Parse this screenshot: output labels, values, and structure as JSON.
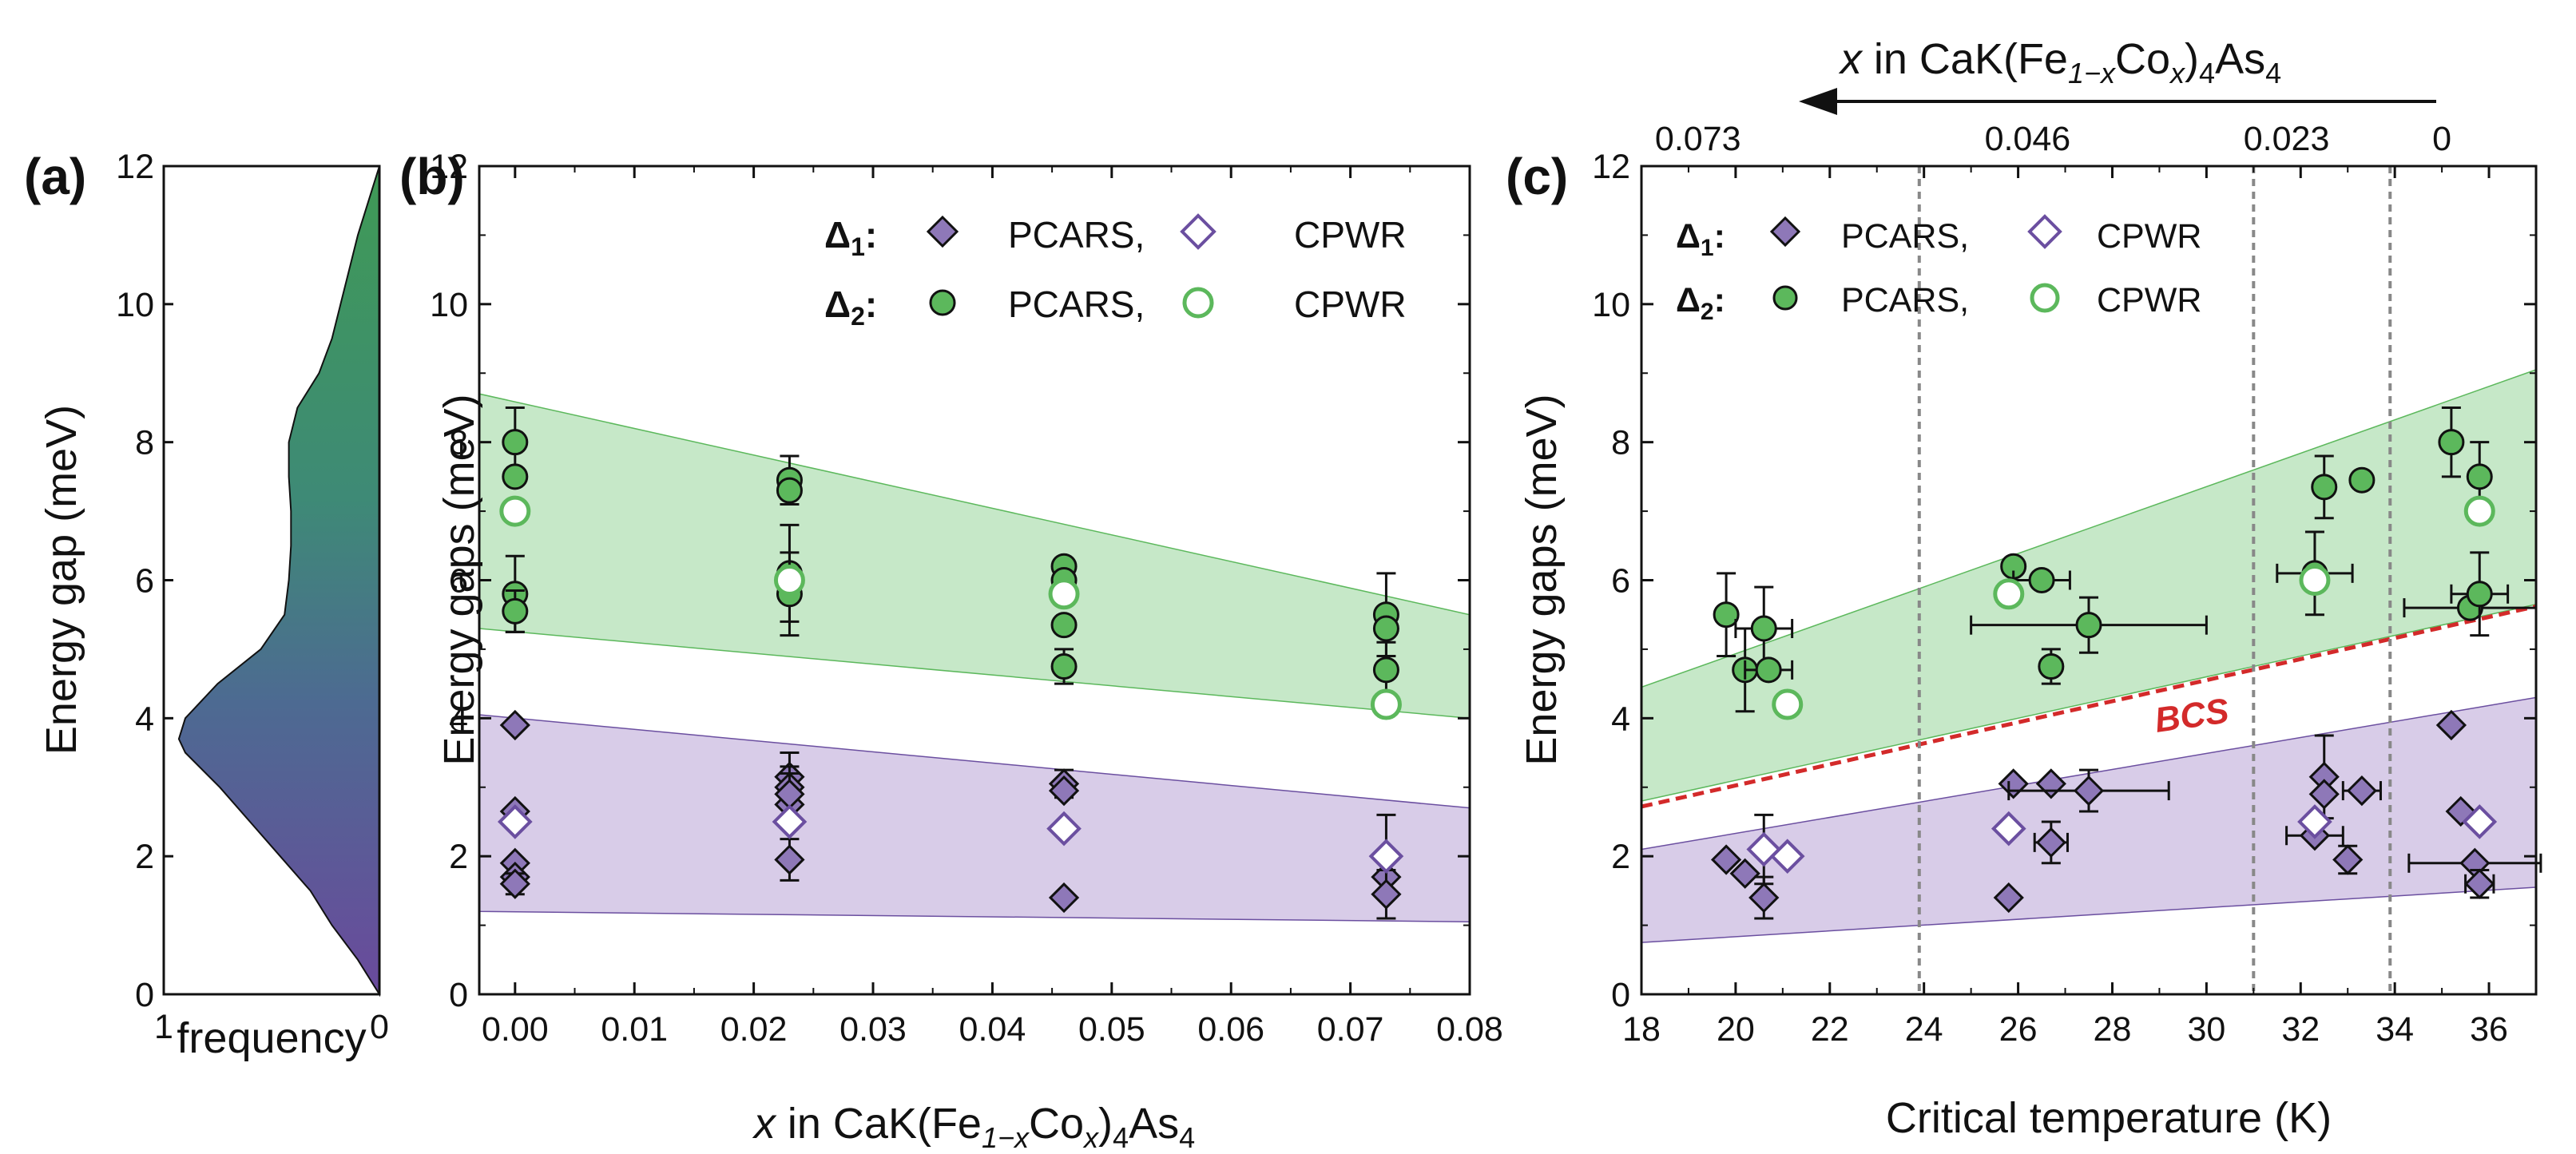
{
  "colors": {
    "green": "#5cb85c",
    "green_fill": "#c6e8c8",
    "purple": "#6b4fa0",
    "purple_fill": "#d8cce8",
    "bcs": "#d32a2a",
    "grid": "#999999"
  },
  "chart_data": [
    {
      "panel": "(a)",
      "type": "area",
      "orientation": "horizontal-density",
      "ylabel": "Energy gap (meV)",
      "xlabel": "frequency",
      "xlim": [
        1,
        0
      ],
      "ylim": [
        0,
        12
      ],
      "xticks": [
        "1",
        "0"
      ],
      "yticks": [
        "0",
        "2",
        "4",
        "6",
        "8",
        "10",
        "12"
      ],
      "density": [
        [
          0,
          0.0
        ],
        [
          0.5,
          0.1
        ],
        [
          1,
          0.22
        ],
        [
          1.5,
          0.32
        ],
        [
          2,
          0.46
        ],
        [
          2.5,
          0.6
        ],
        [
          3,
          0.74
        ],
        [
          3.5,
          0.9
        ],
        [
          3.7,
          0.93
        ],
        [
          4,
          0.9
        ],
        [
          4.5,
          0.75
        ],
        [
          5,
          0.55
        ],
        [
          5.5,
          0.44
        ],
        [
          6,
          0.42
        ],
        [
          6.5,
          0.41
        ],
        [
          7,
          0.41
        ],
        [
          7.5,
          0.42
        ],
        [
          8,
          0.42
        ],
        [
          8.5,
          0.38
        ],
        [
          9,
          0.28
        ],
        [
          9.5,
          0.22
        ],
        [
          10,
          0.18
        ],
        [
          10.5,
          0.14
        ],
        [
          11,
          0.1
        ],
        [
          11.5,
          0.05
        ],
        [
          12,
          0.0
        ]
      ]
    },
    {
      "panel": "(b)",
      "type": "scatter",
      "xlabel_pre": "x",
      "xlabel_mid": " in CaK(Fe",
      "xlabel_sub1": "1−x",
      "xlabel_co": "Co",
      "xlabel_sub2": "x",
      "xlabel_end": ")",
      "xlabel_sub3": "4",
      "xlabel_as": "As",
      "xlabel_sub4": "4",
      "ylabel": "Energy gaps (meV)",
      "xlim": [
        -0.003,
        0.08
      ],
      "ylim": [
        0,
        12
      ],
      "xticks": [
        "0.00",
        "0.01",
        "0.02",
        "0.03",
        "0.04",
        "0.05",
        "0.06",
        "0.07",
        "0.08"
      ],
      "yticks": [
        "0",
        "2",
        "4",
        "6",
        "8",
        "10",
        "12"
      ],
      "legend": {
        "d1": "Δ",
        "d1sub": "1",
        "d2": "Δ",
        "d2sub": "2",
        "colon": ":",
        "pcars": "PCARS,",
        "cpwr": "CPWR"
      },
      "band_green": {
        "x": [
          -0.003,
          0.08
        ],
        "lower": [
          5.3,
          4.0
        ],
        "upper": [
          8.7,
          5.5
        ]
      },
      "band_purple": {
        "x": [
          -0.003,
          0.08
        ],
        "lower": [
          1.2,
          1.05
        ],
        "upper": [
          4.05,
          2.7
        ]
      },
      "series": [
        {
          "name": "Δ1 PCARS",
          "x": [
            0,
            0,
            0,
            0,
            0,
            0.023,
            0.023,
            0.023,
            0.023,
            0.023,
            0.046,
            0.046,
            0.046,
            0.073,
            0.073,
            0.073
          ],
          "y": [
            3.9,
            2.65,
            1.9,
            1.7,
            1.6,
            3.15,
            3.0,
            2.75,
            1.95,
            2.9,
            3.05,
            2.95,
            1.4,
            2.0,
            1.7,
            1.45
          ],
          "err": [
            0,
            0,
            0,
            0,
            0.15,
            0.35,
            0.3,
            0,
            0.3,
            0.3,
            0.2,
            0,
            0,
            0.6,
            0,
            0.35
          ]
        },
        {
          "name": "Δ1 CPWR",
          "x": [
            0,
            0.023,
            0.046,
            0.073
          ],
          "y": [
            2.5,
            2.5,
            2.4,
            2.0
          ],
          "err": [
            0,
            0,
            0,
            0
          ]
        },
        {
          "name": "Δ2 PCARS",
          "x": [
            0,
            0,
            0,
            0,
            0.023,
            0.023,
            0.023,
            0.023,
            0.046,
            0.046,
            0.046,
            0.046,
            0.073,
            0.073,
            0.073
          ],
          "y": [
            8.0,
            7.5,
            5.8,
            5.55,
            7.45,
            7.3,
            6.1,
            5.8,
            6.2,
            6.0,
            5.35,
            4.75,
            5.5,
            5.3,
            4.7
          ],
          "err": [
            0.5,
            0,
            0.55,
            0.3,
            0.35,
            0,
            0.7,
            0.6,
            0,
            0,
            0,
            0.25,
            0.6,
            0,
            0.4
          ]
        },
        {
          "name": "Δ2 CPWR",
          "x": [
            0,
            0.023,
            0.046,
            0.073
          ],
          "y": [
            7.0,
            6.0,
            5.8,
            4.2
          ],
          "err": [
            0,
            0,
            0,
            0
          ]
        }
      ]
    },
    {
      "panel": "(c)",
      "type": "scatter",
      "xlabel": "Critical temperature (K)",
      "ylabel": "Energy gaps (meV)",
      "xlim": [
        18,
        37
      ],
      "ylim": [
        0,
        12
      ],
      "xticks": [
        "18",
        "20",
        "22",
        "24",
        "26",
        "28",
        "30",
        "32",
        "34",
        "36"
      ],
      "yticks": [
        "0",
        "2",
        "4",
        "6",
        "8",
        "10",
        "12"
      ],
      "top_axis": {
        "title_x": "x",
        "title_rest": " in CaK(Fe",
        "sub1": "1−x",
        "co": "Co",
        "sub2": "x",
        "paren": ")",
        "sub3": "4",
        "as": "As",
        "sub4": "4",
        "labels": [
          "0.073",
          "0.046",
          "0.023",
          "0"
        ],
        "label_positions_K": [
          19.2,
          26.2,
          31.7,
          35.0
        ]
      },
      "vlines_K": [
        23.9,
        31.0,
        33.9
      ],
      "bcs_label": "BCS",
      "bcs_line": {
        "x": [
          18,
          37
        ],
        "y": [
          2.72,
          5.62
        ]
      },
      "band_green": {
        "x": [
          18,
          37
        ],
        "lower": [
          2.8,
          5.65
        ],
        "upper": [
          4.45,
          9.05
        ]
      },
      "band_purple": {
        "x": [
          18,
          37
        ],
        "lower": [
          0.75,
          1.55
        ],
        "upper": [
          2.1,
          4.3
        ]
      },
      "legend": {
        "d1": "Δ",
        "d1sub": "1",
        "d2": "Δ",
        "d2sub": "2",
        "colon": ":",
        "pcars": "PCARS,",
        "cpwr": "CPWR"
      },
      "series": [
        {
          "name": "Δ1 PCARS",
          "x": [
            19.8,
            20.2,
            20.6,
            25.8,
            25.9,
            26.7,
            26.7,
            27.5,
            32.3,
            32.5,
            32.5,
            33.0,
            33.3,
            35.2,
            35.4,
            35.7,
            35.8
          ],
          "y": [
            1.95,
            1.75,
            1.4,
            1.4,
            3.05,
            3.05,
            2.2,
            2.95,
            2.3,
            3.15,
            2.9,
            1.95,
            2.95,
            3.9,
            2.65,
            1.9,
            1.6
          ],
          "xerr": [
            0,
            0,
            0,
            0,
            0,
            0,
            0.35,
            1.7,
            0.6,
            0,
            0,
            0,
            0.4,
            0,
            0,
            1.4,
            0.3
          ],
          "err": [
            0,
            0,
            0.3,
            0,
            0,
            0,
            0.3,
            0.3,
            0,
            0.6,
            0,
            0.2,
            0,
            0,
            0,
            0,
            0.2
          ]
        },
        {
          "name": "Δ1 CPWR",
          "x": [
            20.6,
            21.1,
            25.8,
            32.3,
            35.8
          ],
          "y": [
            2.1,
            2.0,
            2.4,
            2.5,
            2.5
          ],
          "xerr": [
            0,
            0,
            0,
            0,
            0
          ],
          "err": [
            0.5,
            0,
            0,
            0,
            0
          ]
        },
        {
          "name": "Δ2 PCARS",
          "x": [
            19.8,
            20.2,
            20.6,
            20.7,
            25.9,
            26.5,
            26.7,
            27.5,
            32.3,
            32.5,
            33.3,
            35.2,
            35.6,
            35.8,
            35.8
          ],
          "y": [
            5.5,
            4.7,
            5.3,
            4.7,
            6.2,
            6.0,
            4.75,
            5.35,
            6.1,
            7.35,
            7.45,
            8.0,
            5.6,
            7.5,
            5.8
          ],
          "xerr": [
            0,
            0,
            0.6,
            0.5,
            0,
            0.6,
            0,
            2.5,
            0.8,
            0,
            0,
            0,
            1.4,
            0,
            0.6
          ],
          "err": [
            0.6,
            0.6,
            0.6,
            0,
            0,
            0,
            0.25,
            0.4,
            0.6,
            0.45,
            0,
            0.5,
            0,
            0.5,
            0.6
          ]
        },
        {
          "name": "Δ2 CPWR",
          "x": [
            21.1,
            25.8,
            32.3,
            35.8
          ],
          "y": [
            4.2,
            5.8,
            6.0,
            7.0
          ],
          "xerr": [
            0,
            0,
            0,
            0
          ],
          "err": [
            0,
            0,
            0,
            0
          ]
        }
      ]
    }
  ]
}
